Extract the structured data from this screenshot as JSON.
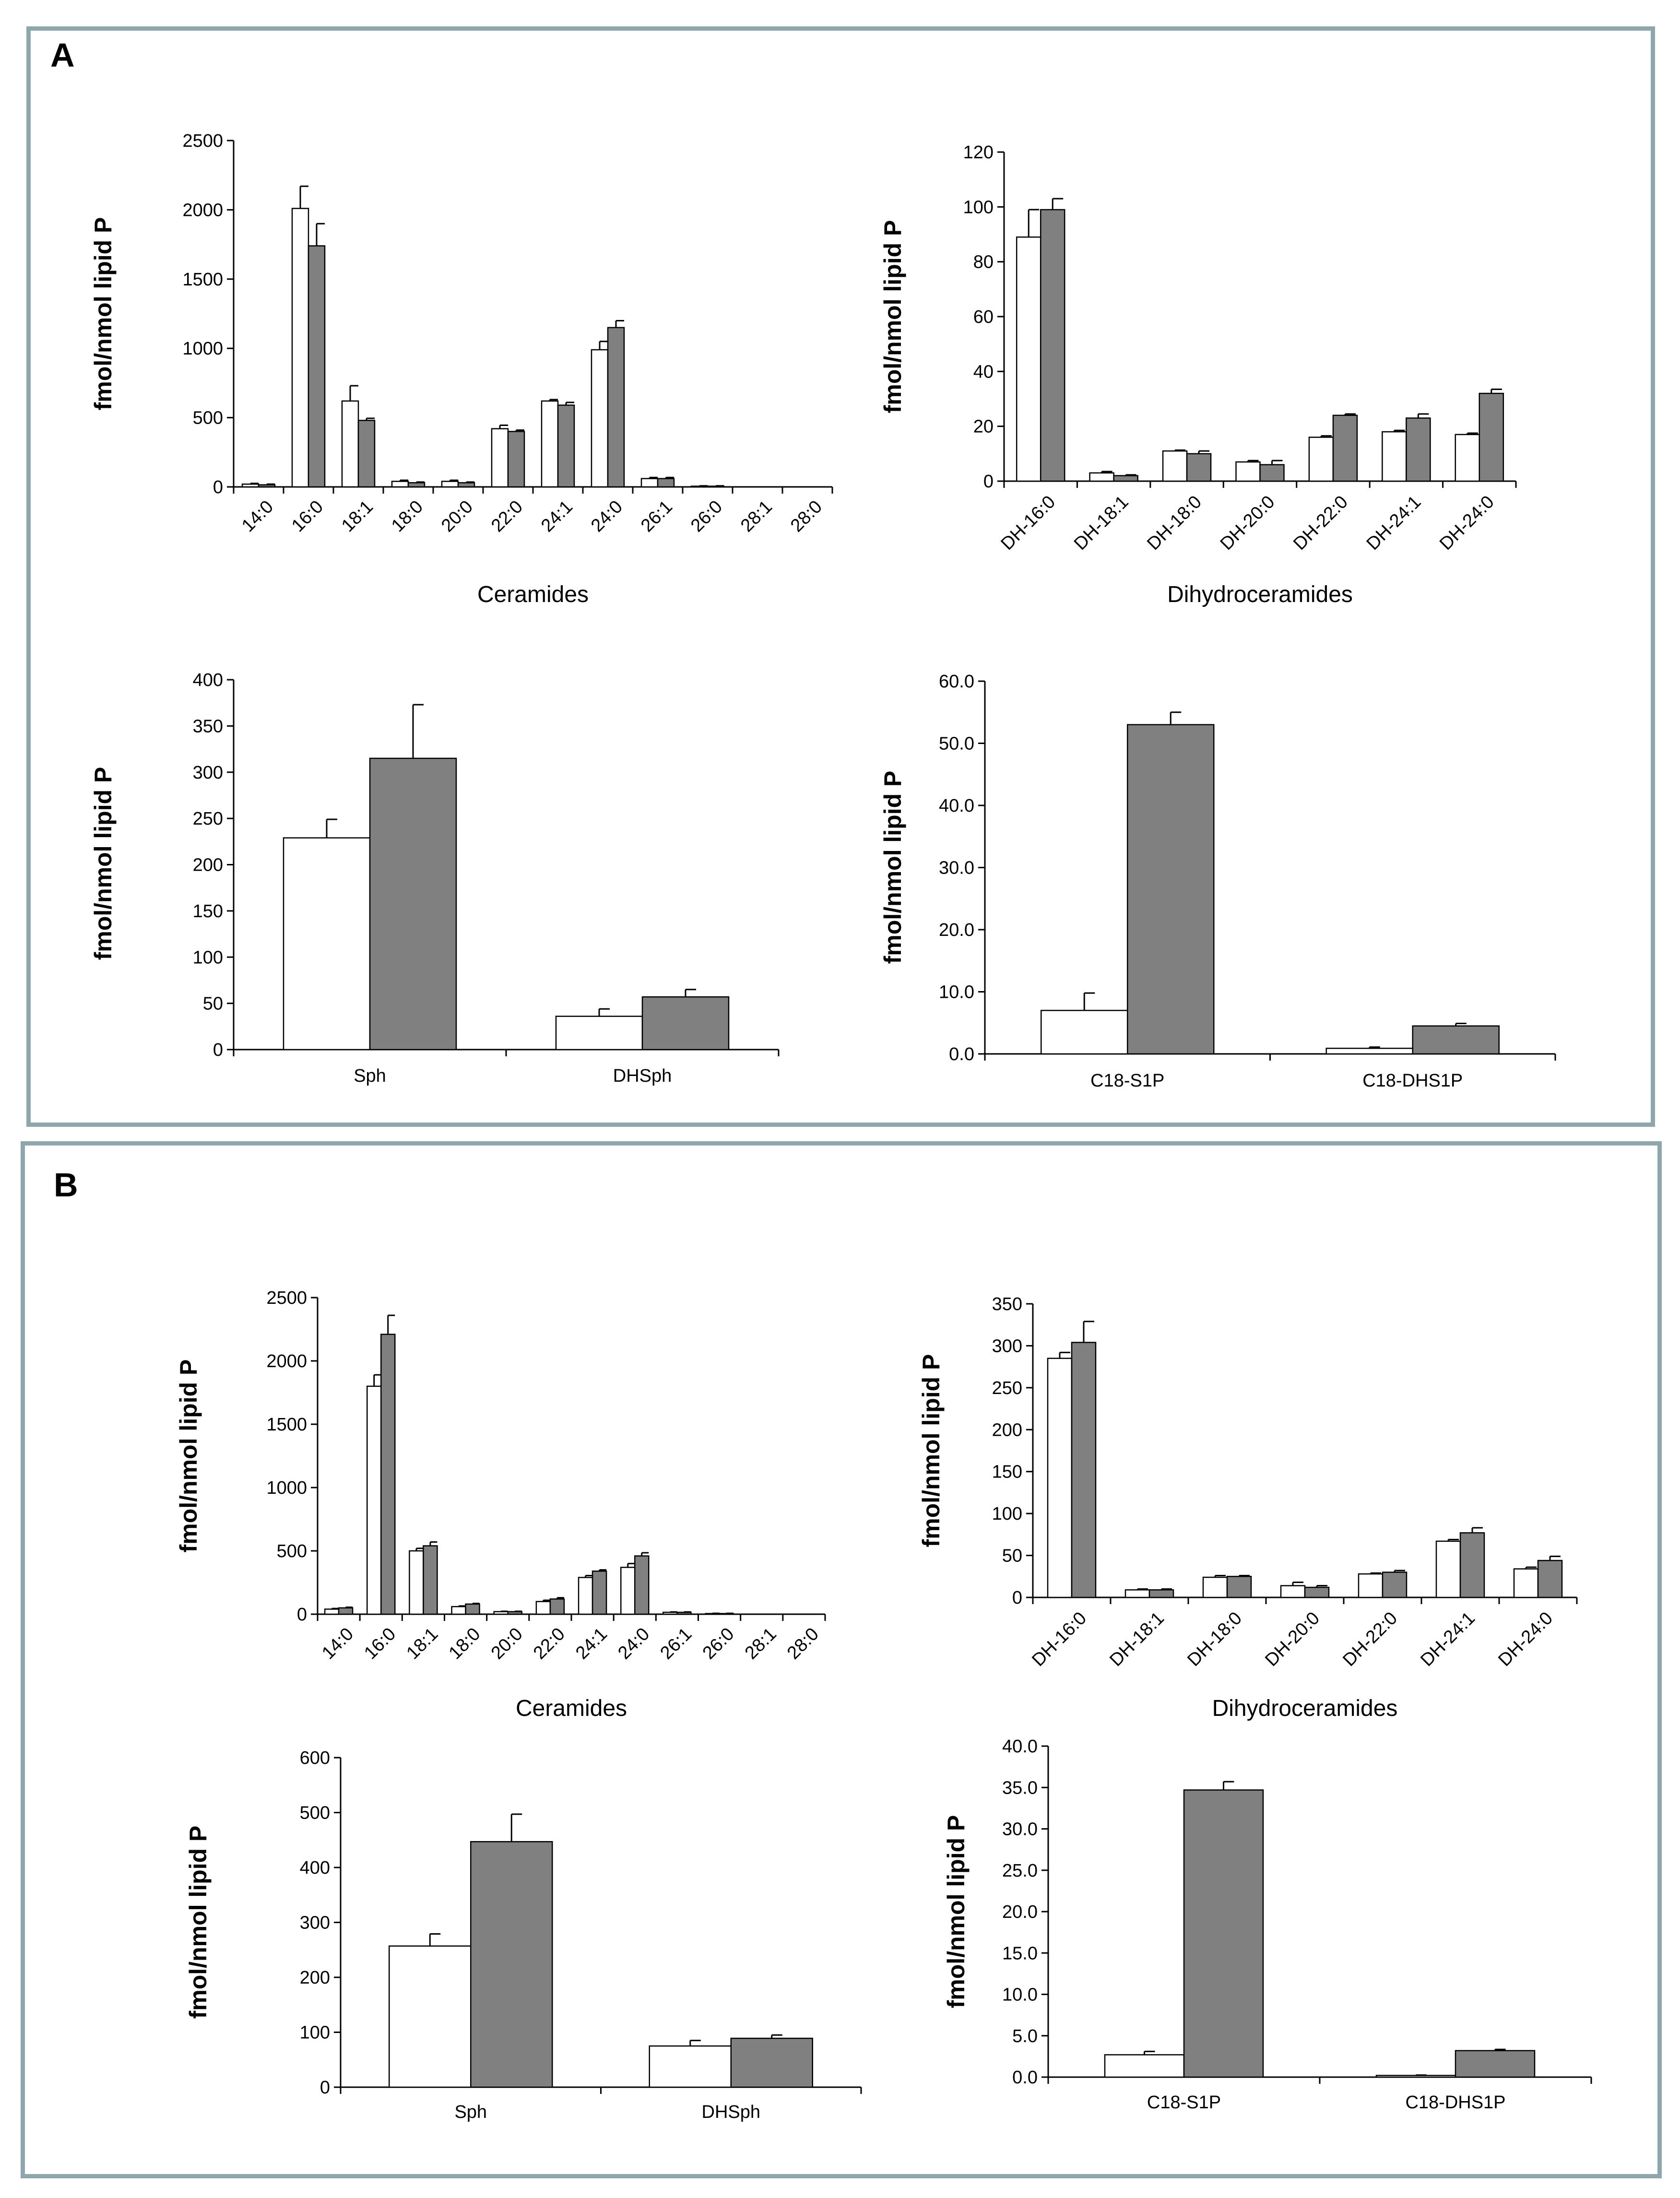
{
  "panels": [
    {
      "letter": "A"
    },
    {
      "letter": "B"
    }
  ],
  "colors": {
    "bar_open": "#ffffff",
    "bar_filled": "#808080",
    "stroke": "#000000",
    "border": "#8fa6ac"
  },
  "chart_data": [
    {
      "id": "A-ceramides",
      "panel": "A",
      "type": "bar",
      "categories": [
        "14:0",
        "16:0",
        "18:1",
        "18:0",
        "20:0",
        "22:0",
        "24:1",
        "24:0",
        "26:1",
        "26:0",
        "28:1",
        "28:0"
      ],
      "series": [
        {
          "name": "open",
          "values": [
            20,
            2010,
            620,
            40,
            40,
            420,
            620,
            990,
            60,
            5,
            0,
            0
          ],
          "errors": [
            5,
            160,
            110,
            8,
            8,
            25,
            10,
            60,
            8,
            3,
            0,
            0
          ]
        },
        {
          "name": "filled",
          "values": [
            15,
            1740,
            480,
            30,
            30,
            400,
            590,
            1150,
            60,
            5,
            0,
            0
          ],
          "errors": [
            5,
            160,
            15,
            5,
            5,
            10,
            20,
            50,
            8,
            3,
            0,
            0
          ]
        }
      ],
      "xlabel": "Ceramides",
      "ylabel": "fmol/nmol lipid P",
      "ylim": [
        0,
        2500
      ],
      "yticks": [
        "0",
        "500",
        "1000",
        "1500",
        "2000",
        "2500"
      ],
      "rotated_labels": true
    },
    {
      "id": "A-dihydroceramides",
      "panel": "A",
      "type": "bar",
      "categories": [
        "DH-16:0",
        "DH-18:1",
        "DH-18:0",
        "DH-20:0",
        "DH-22:0",
        "DH-24:1",
        "DH-24:0"
      ],
      "series": [
        {
          "name": "open",
          "values": [
            89,
            3,
            11,
            7,
            16,
            18,
            17
          ],
          "errors": [
            10,
            0.5,
            0.3,
            0.5,
            0.5,
            0.5,
            0.5
          ]
        },
        {
          "name": "filled",
          "values": [
            99,
            2,
            10,
            6,
            24,
            23,
            32
          ],
          "errors": [
            4,
            0.3,
            1,
            1.5,
            0.5,
            1.5,
            1.5
          ]
        }
      ],
      "xlabel": "Dihydroceramides",
      "ylabel": "fmol/nmol lipid P",
      "ylim": [
        0,
        120
      ],
      "yticks": [
        "0",
        "20",
        "40",
        "60",
        "80",
        "100",
        "120"
      ],
      "rotated_labels": true
    },
    {
      "id": "A-sph",
      "panel": "A",
      "type": "bar",
      "categories": [
        "Sph",
        "DHSph"
      ],
      "series": [
        {
          "name": "open",
          "values": [
            229,
            36
          ],
          "errors": [
            20,
            8
          ]
        },
        {
          "name": "filled",
          "values": [
            315,
            57
          ],
          "errors": [
            58,
            8
          ]
        }
      ],
      "xlabel": "",
      "ylabel": "fmol/nmol lipid P",
      "ylim": [
        0,
        400
      ],
      "yticks": [
        "0",
        "50",
        "100",
        "150",
        "200",
        "250",
        "300",
        "350",
        "400"
      ],
      "rotated_labels": false
    },
    {
      "id": "A-s1p",
      "panel": "A",
      "type": "bar",
      "categories": [
        "C18-S1P",
        "C18-DHS1P"
      ],
      "series": [
        {
          "name": "open",
          "values": [
            7.0,
            0.9
          ],
          "errors": [
            2.8,
            0.2
          ]
        },
        {
          "name": "filled",
          "values": [
            53.0,
            4.5
          ],
          "errors": [
            2.0,
            0.4
          ]
        }
      ],
      "xlabel": "",
      "ylabel": "fmol/nmol lipid P",
      "ylim": [
        0,
        60
      ],
      "yticks": [
        "0.0",
        "10.0",
        "20.0",
        "30.0",
        "40.0",
        "50.0",
        "60.0"
      ],
      "rotated_labels": false
    },
    {
      "id": "B-ceramides",
      "panel": "B",
      "type": "bar",
      "categories": [
        "14:0",
        "16:0",
        "18:1",
        "18:0",
        "20:0",
        "22:0",
        "24:1",
        "24:0",
        "26:1",
        "26:0",
        "28:1",
        "28:0"
      ],
      "series": [
        {
          "name": "open",
          "values": [
            40,
            1800,
            500,
            60,
            20,
            100,
            290,
            370,
            15,
            5,
            0,
            0
          ],
          "errors": [
            5,
            90,
            20,
            5,
            3,
            10,
            15,
            30,
            3,
            2,
            0,
            0
          ]
        },
        {
          "name": "filled",
          "values": [
            50,
            2210,
            540,
            80,
            20,
            120,
            340,
            460,
            15,
            5,
            0,
            0
          ],
          "errors": [
            5,
            150,
            30,
            5,
            3,
            10,
            10,
            25,
            3,
            2,
            0,
            0
          ]
        }
      ],
      "xlabel": "Ceramides",
      "ylabel": "fmol/nmol lipid P",
      "ylim": [
        0,
        2500
      ],
      "yticks": [
        "0",
        "500",
        "1000",
        "1500",
        "2000",
        "2500"
      ],
      "rotated_labels": true
    },
    {
      "id": "B-dihydroceramides",
      "panel": "B",
      "type": "bar",
      "categories": [
        "DH-16:0",
        "DH-18:1",
        "DH-18:0",
        "DH-20:0",
        "DH-22:0",
        "DH-24:1",
        "DH-24:0"
      ],
      "series": [
        {
          "name": "open",
          "values": [
            285,
            9,
            24,
            14,
            28,
            67,
            34
          ],
          "errors": [
            7,
            1,
            2,
            4,
            1,
            2,
            2
          ]
        },
        {
          "name": "filled",
          "values": [
            304,
            9,
            25,
            12,
            30,
            77,
            44
          ],
          "errors": [
            25,
            1,
            1,
            2,
            2,
            6,
            5
          ]
        }
      ],
      "xlabel": "Dihydroceramides",
      "ylabel": "fmol/nmol lipid P",
      "ylim": [
        0,
        350
      ],
      "yticks": [
        "0",
        "50",
        "100",
        "150",
        "200",
        "250",
        "300",
        "350"
      ],
      "rotated_labels": true
    },
    {
      "id": "B-sph",
      "panel": "B",
      "type": "bar",
      "categories": [
        "Sph",
        "DHSph"
      ],
      "series": [
        {
          "name": "open",
          "values": [
            257,
            75
          ],
          "errors": [
            22,
            10
          ]
        },
        {
          "name": "filled",
          "values": [
            447,
            89
          ],
          "errors": [
            50,
            6
          ]
        }
      ],
      "xlabel": "",
      "ylabel": "fmol/nmol lipid P",
      "ylim": [
        0,
        600
      ],
      "yticks": [
        "0",
        "100",
        "200",
        "300",
        "400",
        "500",
        "600"
      ],
      "rotated_labels": false
    },
    {
      "id": "B-s1p",
      "panel": "B",
      "type": "bar",
      "categories": [
        "C18-S1P",
        "C18-DHS1P"
      ],
      "series": [
        {
          "name": "open",
          "values": [
            2.7,
            0.2
          ],
          "errors": [
            0.4,
            0.05
          ]
        },
        {
          "name": "filled",
          "values": [
            34.7,
            3.2
          ],
          "errors": [
            1.0,
            0.15
          ]
        }
      ],
      "xlabel": "",
      "ylabel": "fmol/nmol lipid P",
      "ylim": [
        0,
        40
      ],
      "yticks": [
        "0.0",
        "5.0",
        "10.0",
        "15.0",
        "20.0",
        "25.0",
        "30.0",
        "35.0",
        "40.0"
      ],
      "rotated_labels": false
    }
  ]
}
